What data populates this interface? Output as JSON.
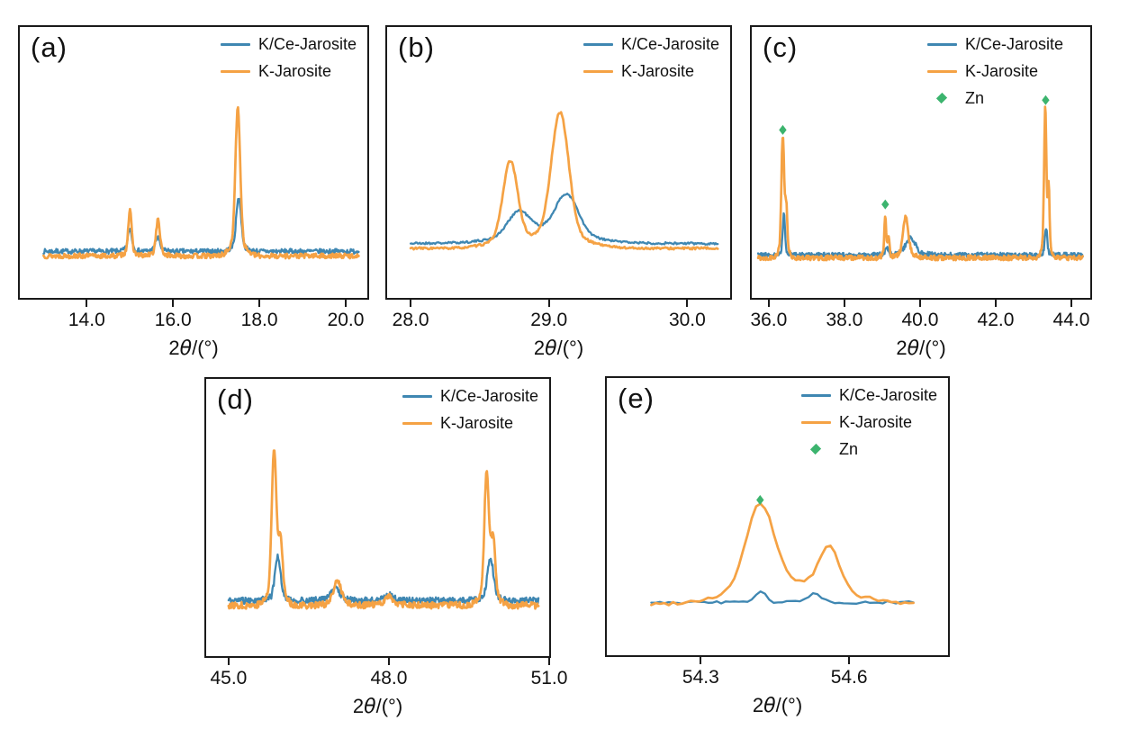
{
  "colors": {
    "blue": "#3f87b2",
    "orange": "#f5a244",
    "green": "#3cb46e",
    "axis": "#1a1a1a",
    "text": "#111111"
  },
  "xlabel": {
    "prefix": "2",
    "theta": "θ",
    "suffix": "/(°)"
  },
  "chart_data": {
    "type": "line",
    "xlabel": "2θ/(°)",
    "legend_position": "top-right inside plot",
    "grid": false,
    "y_axis": "intensity (arbitrary units, no ticks shown)",
    "panels": [
      {
        "id": "a",
        "label": "(a)",
        "x_axis": {
          "vmin": 12.45,
          "vmax": 20.5,
          "ticks": [
            "14.0",
            "16.0",
            "18.0",
            "20.0"
          ],
          "tick_values": [
            14.0,
            16.0,
            18.0,
            20.0
          ]
        },
        "data_range": [
          13.0,
          20.3
        ],
        "legend": [
          {
            "label": "K/Ce-Jarosite",
            "swatch": "line",
            "color": "blue"
          },
          {
            "label": "K-Jarosite",
            "swatch": "line",
            "color": "orange"
          }
        ],
        "series": [
          {
            "name": "K/Ce-Jarosite",
            "color": "blue",
            "baseline": 0.172,
            "noise": 0.009,
            "points": 470,
            "seed": 7,
            "peaks": [
              {
                "center": 15.0,
                "height": 0.082,
                "width": 0.045
              },
              {
                "center": 15.64,
                "height": 0.052,
                "width": 0.05
              },
              {
                "center": 17.52,
                "height": 0.2,
                "width": 0.055
              }
            ]
          },
          {
            "name": "K-Jarosite",
            "color": "orange",
            "baseline": 0.155,
            "noise": 0.009,
            "points": 470,
            "seed": 13,
            "peaks": [
              {
                "center": 15.0,
                "height": 0.165,
                "width": 0.04
              },
              {
                "center": 15.65,
                "height": 0.132,
                "width": 0.045
              },
              {
                "center": 17.5,
                "height": 0.545,
                "width": 0.055
              }
            ]
          }
        ],
        "zn_markers": []
      },
      {
        "id": "b",
        "label": "(b)",
        "x_axis": {
          "vmin": 27.83,
          "vmax": 30.31,
          "ticks": [
            "28.0",
            "29.0",
            "30.0"
          ],
          "tick_values": [
            28.0,
            29.0,
            30.0
          ]
        },
        "data_range": [
          28.0,
          30.22
        ],
        "legend": [
          {
            "label": "K/Ce-Jarosite",
            "swatch": "line",
            "color": "blue"
          },
          {
            "label": "K-Jarosite",
            "swatch": "line",
            "color": "orange"
          }
        ],
        "series": [
          {
            "name": "K/Ce-Jarosite",
            "color": "blue",
            "baseline": 0.2,
            "noise": 0.004,
            "points": 300,
            "seed": 21,
            "peaks": [
              {
                "center": 28.78,
                "height": 0.09,
                "width": 0.075
              },
              {
                "center": 29.13,
                "height": 0.155,
                "width": 0.08
              },
              {
                "center": 28.95,
                "height": 0.035,
                "width": 0.22
              }
            ]
          },
          {
            "name": "K-Jarosite",
            "color": "orange",
            "baseline": 0.183,
            "noise": 0.004,
            "points": 300,
            "seed": 33,
            "peaks": [
              {
                "center": 28.72,
                "height": 0.315,
                "width": 0.052
              },
              {
                "center": 29.08,
                "height": 0.5,
                "width": 0.062
              }
            ]
          }
        ],
        "zn_markers": []
      },
      {
        "id": "c",
        "label": "(c)",
        "x_axis": {
          "vmin": 35.55,
          "vmax": 44.5,
          "ticks": [
            "36.0",
            "38.0",
            "40.0",
            "42.0",
            "44.0"
          ],
          "tick_values": [
            36.0,
            38.0,
            40.0,
            42.0,
            44.0
          ]
        },
        "data_range": [
          35.72,
          44.3
        ],
        "legend": [
          {
            "label": "K/Ce-Jarosite",
            "swatch": "line",
            "color": "blue"
          },
          {
            "label": "K-Jarosite",
            "swatch": "line",
            "color": "orange"
          },
          {
            "label": "Zn",
            "swatch": "diamond",
            "color": "green"
          }
        ],
        "series": [
          {
            "name": "K/Ce-Jarosite",
            "color": "blue",
            "baseline": 0.158,
            "noise": 0.009,
            "points": 560,
            "seed": 41,
            "peaks": [
              {
                "center": 36.4,
                "height": 0.15,
                "width": 0.03
              },
              {
                "center": 39.12,
                "height": 0.025,
                "width": 0.04
              },
              {
                "center": 39.75,
                "height": 0.062,
                "width": 0.13
              },
              {
                "center": 43.33,
                "height": 0.1,
                "width": 0.03
              }
            ]
          },
          {
            "name": "K-Jarosite",
            "color": "orange",
            "baseline": 0.148,
            "noise": 0.009,
            "points": 560,
            "seed": 55,
            "peaks": [
              {
                "center": 36.37,
                "height": 0.44,
                "width": 0.035
              },
              {
                "center": 36.46,
                "height": 0.17,
                "width": 0.028
              },
              {
                "center": 39.08,
                "height": 0.15,
                "width": 0.025
              },
              {
                "center": 39.17,
                "height": 0.07,
                "width": 0.022
              },
              {
                "center": 39.62,
                "height": 0.148,
                "width": 0.07
              },
              {
                "center": 43.31,
                "height": 0.55,
                "width": 0.03
              },
              {
                "center": 43.4,
                "height": 0.25,
                "width": 0.022
              }
            ]
          }
        ],
        "zn_markers": [
          {
            "x": 36.37,
            "yfrac": 0.62
          },
          {
            "x": 39.08,
            "yfrac": 0.345
          },
          {
            "x": 43.32,
            "yfrac": 0.73
          }
        ]
      },
      {
        "id": "d",
        "label": "(d)",
        "x_axis": {
          "vmin": 44.58,
          "vmax": 51.0,
          "ticks": [
            "45.0",
            "48.0",
            "51.0"
          ],
          "tick_values": [
            45.0,
            48.0,
            51.0
          ]
        },
        "data_range": [
          45.0,
          50.8
        ],
        "legend": [
          {
            "label": "K/Ce-Jarosite",
            "swatch": "line",
            "color": "blue"
          },
          {
            "label": "K-Jarosite",
            "swatch": "line",
            "color": "orange"
          }
        ],
        "series": [
          {
            "name": "K/Ce-Jarosite",
            "color": "blue",
            "baseline": 0.2,
            "noise": 0.012,
            "points": 480,
            "seed": 61,
            "peaks": [
              {
                "center": 45.92,
                "height": 0.16,
                "width": 0.05
              },
              {
                "center": 47.0,
                "height": 0.045,
                "width": 0.08
              },
              {
                "center": 48.0,
                "height": 0.02,
                "width": 0.08
              },
              {
                "center": 49.9,
                "height": 0.155,
                "width": 0.055
              }
            ]
          },
          {
            "name": "K-Jarosite",
            "color": "orange",
            "baseline": 0.183,
            "noise": 0.012,
            "points": 480,
            "seed": 77,
            "peaks": [
              {
                "center": 45.85,
                "height": 0.55,
                "width": 0.042
              },
              {
                "center": 45.97,
                "height": 0.22,
                "width": 0.04
              },
              {
                "center": 47.04,
                "height": 0.088,
                "width": 0.07
              },
              {
                "center": 48.0,
                "height": 0.032,
                "width": 0.08
              },
              {
                "center": 49.83,
                "height": 0.47,
                "width": 0.042
              },
              {
                "center": 49.95,
                "height": 0.22,
                "width": 0.04
              }
            ]
          }
        ],
        "zn_markers": []
      },
      {
        "id": "e",
        "label": "(e)",
        "x_axis": {
          "vmin": 54.11,
          "vmax": 54.8,
          "ticks": [
            "54.3",
            "54.6"
          ],
          "tick_values": [
            54.3,
            54.6
          ]
        },
        "data_range": [
          54.2,
          54.73
        ],
        "legend": [
          {
            "label": "K/Ce-Jarosite",
            "swatch": "line",
            "color": "blue"
          },
          {
            "label": "K-Jarosite",
            "swatch": "line",
            "color": "orange"
          },
          {
            "label": "Zn",
            "swatch": "diamond",
            "color": "green"
          }
        ],
        "series": [
          {
            "name": "K/Ce-Jarosite",
            "color": "blue",
            "baseline": 0.19,
            "noise": 0.005,
            "points": 60,
            "seed": 85,
            "peaks": [
              {
                "center": 54.42,
                "height": 0.045,
                "width": 0.009
              },
              {
                "center": 54.53,
                "height": 0.032,
                "width": 0.011
              }
            ]
          },
          {
            "name": "K-Jarosite",
            "color": "orange",
            "baseline": 0.18,
            "noise": 0.006,
            "points": 60,
            "seed": 99,
            "peaks": [
              {
                "center": 54.42,
                "height": 0.33,
                "width": 0.028
              },
              {
                "center": 54.56,
                "height": 0.165,
                "width": 0.02
              },
              {
                "center": 54.5,
                "height": 0.05,
                "width": 0.09
              }
            ]
          }
        ],
        "zn_markers": [
          {
            "x": 54.42,
            "yfrac": 0.56
          }
        ]
      }
    ]
  }
}
